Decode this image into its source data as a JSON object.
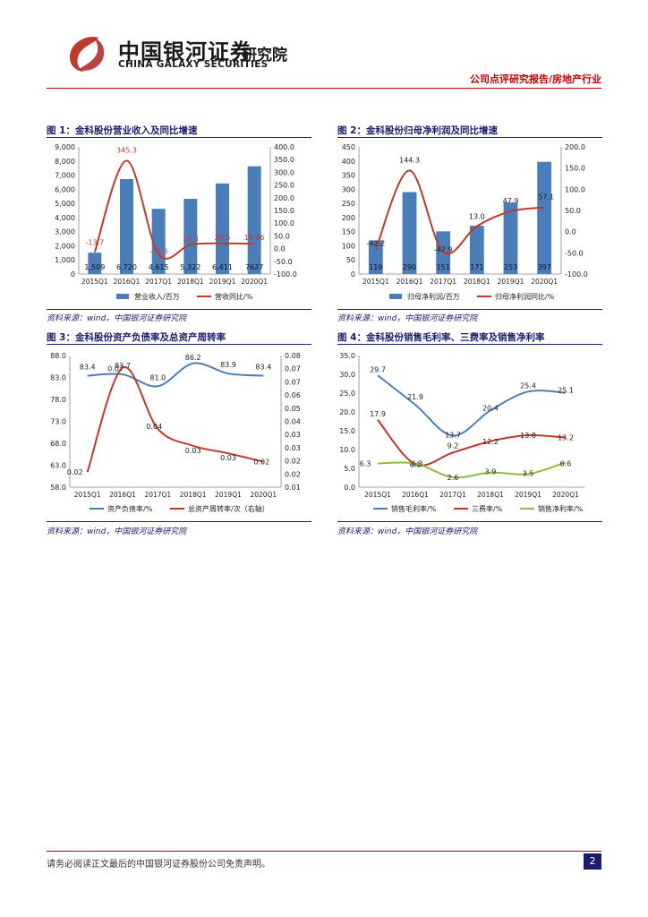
{
  "header": {
    "logo_cn": "中国银河证券",
    "logo_en": "CHINA GALAXY SECURITIES",
    "institute": "研究院",
    "report_type": "公司点评研究报告/房地产行业"
  },
  "colors": {
    "bar": "#4a7ebb",
    "line_red": "#c0392b",
    "line_blue": "#4a7ebb",
    "line_green": "#8dbb3c",
    "accent": "#c00000",
    "navy": "#1b1b70"
  },
  "figures": [
    {
      "title": "图 1：金科股份营业收入及同比增速",
      "source": "资料来源：wind，中国银河证券研究院"
    },
    {
      "title": "图 2：金科股份归母净利润及同比增速",
      "source": "资料来源：wind，中国银河证券研究院"
    },
    {
      "title": "图 3：金科股份资产负债率及总资产周转率",
      "source": "资料来源：wind，中国银河证券研究院"
    },
    {
      "title": "图 4：金科股份销售毛利率、三费率及销售净利率",
      "source": "资料来源：wind，中国银河证券研究院"
    }
  ],
  "chart_data": [
    {
      "type": "bar",
      "categories": [
        "2015Q1",
        "2016Q1",
        "2017Q1",
        "2018Q1",
        "2019Q1",
        "2020Q1"
      ],
      "series": [
        {
          "name": "营业收入/百万",
          "kind": "bar",
          "axis": "left",
          "values": [
            1509,
            6720,
            4615,
            5322,
            6411,
            7627
          ],
          "labels": [
            "1,509",
            "6,720",
            "4,615",
            "5,322",
            "6,411",
            "7627"
          ]
        },
        {
          "name": "营收同比/%",
          "kind": "line",
          "axis": "right",
          "values": [
            -13.7,
            345.3,
            -21.3,
            15.3,
            20.5,
            18.96
          ],
          "labels": [
            "-13.7",
            "345.3",
            "-21.3",
            "15.3",
            "20.5",
            "18.96"
          ]
        }
      ],
      "left_ticks": [
        "0",
        "1,000",
        "2,000",
        "3,000",
        "4,000",
        "5,000",
        "6,000",
        "7,000",
        "8,000",
        "9,000"
      ],
      "right_ticks": [
        "-100.0",
        "-50.0",
        "0.0",
        "50.0",
        "100.0",
        "150.0",
        "200.0",
        "250.0",
        "300.0",
        "350.0",
        "400.0"
      ],
      "ylim_left": [
        0,
        9000
      ],
      "ylim_right": [
        -100,
        400
      ]
    },
    {
      "type": "bar",
      "categories": [
        "2015Q1",
        "2016Q1",
        "2017Q1",
        "2018Q1",
        "2019Q1",
        "2020Q1"
      ],
      "series": [
        {
          "name": "归母净利润/百万",
          "kind": "bar",
          "axis": "left",
          "values": [
            119,
            290,
            151,
            171,
            253,
            397
          ],
          "labels": [
            "119",
            "290",
            "151",
            "171",
            "253",
            "397"
          ]
        },
        {
          "name": "归母净利润同比/%",
          "kind": "line",
          "axis": "right",
          "values": [
            -42.2,
            144.3,
            -47.9,
            13.0,
            47.9,
            57.1
          ],
          "labels": [
            "-42.2",
            "144.3",
            "-47.9",
            "13.0",
            "47.9",
            "57.1"
          ]
        }
      ],
      "left_ticks": [
        "0",
        "50",
        "100",
        "150",
        "200",
        "250",
        "300",
        "350",
        "400",
        "450"
      ],
      "right_ticks": [
        "-100.0",
        "-50.0",
        "0.0",
        "50.0",
        "100.0",
        "150.0",
        "200.0"
      ],
      "ylim_left": [
        0,
        450
      ],
      "ylim_right": [
        -100,
        200
      ]
    },
    {
      "type": "line",
      "categories": [
        "2015Q1",
        "2016Q1",
        "2017Q1",
        "2018Q1",
        "2019Q1",
        "2020Q1"
      ],
      "series": [
        {
          "name": "资产负债率/%",
          "axis": "left",
          "color": "blue",
          "values": [
            83.4,
            83.7,
            81.0,
            86.2,
            83.9,
            83.4
          ],
          "labels": [
            "83.4",
            "83.7",
            "81.0",
            "86.2",
            "83.9",
            "83.4"
          ]
        },
        {
          "name": "总资产周转率/次（右轴）",
          "axis": "right",
          "color": "red",
          "values": [
            0.02,
            0.07,
            0.04,
            0.03,
            0.03,
            0.02
          ],
          "plot": [
            0.018,
            0.0735,
            0.041,
            0.032,
            0.028,
            0.0235
          ],
          "labels": [
            "0.02",
            "0.07",
            "0.04",
            "0.03",
            "0.03",
            "0.02"
          ]
        }
      ],
      "left_ticks": [
        "58.0",
        "63.0",
        "68.0",
        "73.0",
        "78.0",
        "83.0",
        "88.0"
      ],
      "right_ticks": [
        "0.01",
        "0.02",
        "0.02",
        "0.03",
        "0.03",
        "0.04",
        "0.05",
        "0.06",
        "0.07",
        "0.07",
        "0.08"
      ],
      "ylim_left": [
        58,
        88
      ],
      "ylim_right": [
        0.01,
        0.08
      ]
    },
    {
      "type": "line",
      "categories": [
        "2015Q1",
        "2016Q1",
        "2017Q1",
        "2018Q1",
        "2019Q1",
        "2020Q1"
      ],
      "series": [
        {
          "name": "销售毛利率/%",
          "color": "blue",
          "values": [
            29.7,
            21.9,
            13.7,
            20.4,
            25.4,
            25.1
          ],
          "labels": [
            "29.7",
            "21.9",
            "13.7",
            "20.4",
            "25.4",
            "25.1"
          ]
        },
        {
          "name": "三费率/%",
          "color": "red",
          "values": [
            17.9,
            6.1,
            9.2,
            12.2,
            13.8,
            13.2
          ],
          "labels": [
            "17.9",
            "6.1",
            "9.2",
            "12.2",
            "13.8",
            "13.2"
          ]
        },
        {
          "name": "销售净利率/%",
          "color": "green",
          "values": [
            6.3,
            6.3,
            2.6,
            3.9,
            3.5,
            6.6
          ],
          "labels": [
            "6.3",
            "6.3",
            "2.6",
            "3.9",
            "3.5",
            "6.6"
          ]
        }
      ],
      "left_ticks": [
        "0.0",
        "5.0",
        "10.0",
        "15.0",
        "20.0",
        "25.0",
        "30.0",
        "35.0"
      ],
      "ylim_left": [
        0,
        35
      ]
    }
  ],
  "footer": {
    "disclaimer": "请务必阅读正文最后的中国银河证券股份公司免责声明。",
    "page": "2"
  }
}
